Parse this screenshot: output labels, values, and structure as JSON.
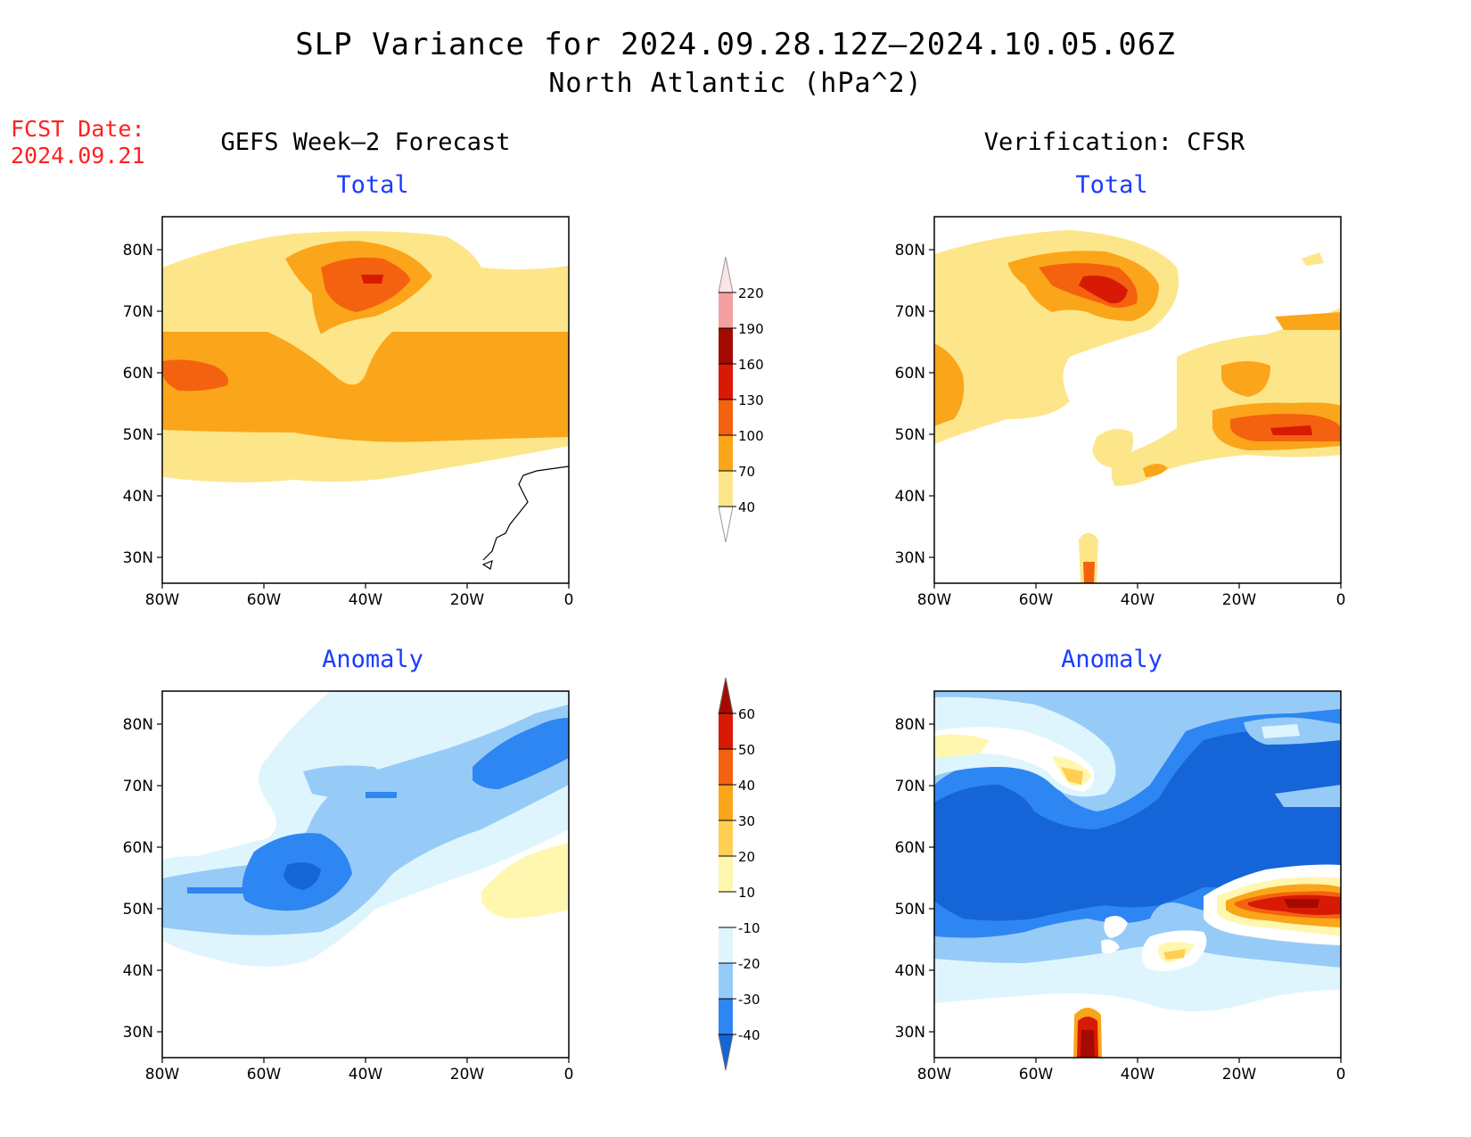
{
  "title": {
    "line1": "SLP Variance for 2024.09.28.12Z–2024.10.05.06Z",
    "line2": "North Atlantic (hPa^2)"
  },
  "forecast_date": {
    "label": "FCST Date:",
    "value": "2024.09.21"
  },
  "columns": {
    "left": "GEFS Week–2 Forecast",
    "right": "Verification: CFSR"
  },
  "panels": {
    "total_label": "Total",
    "anomaly_label": "Anomaly"
  },
  "axes": {
    "lat_ticks": [
      "80N",
      "70N",
      "60N",
      "50N",
      "40N",
      "30N"
    ],
    "lon_ticks": [
      "80W",
      "60W",
      "40W",
      "20W",
      "0"
    ]
  },
  "colors": {
    "total": [
      "#fde68a",
      "#fba51a",
      "#f4620f",
      "#d81a05",
      "#a10a00",
      "#f4a0a0",
      "#fde5e5"
    ],
    "anomaly": [
      "#1565d8",
      "#2e86f2",
      "#97cbf7",
      "#dff5fd",
      "#ffffff",
      "#fff7b0",
      "#ffcf52",
      "#fba51a",
      "#f4620f",
      "#d81a05",
      "#a50a00"
    ]
  },
  "legend_total": {
    "labels": [
      "40",
      "70",
      "100",
      "130",
      "160",
      "190",
      "220"
    ]
  },
  "legend_anomaly": {
    "labels": [
      "-40",
      "-30",
      "-20",
      "-10",
      "10",
      "20",
      "30",
      "40",
      "50",
      "60"
    ]
  }
}
